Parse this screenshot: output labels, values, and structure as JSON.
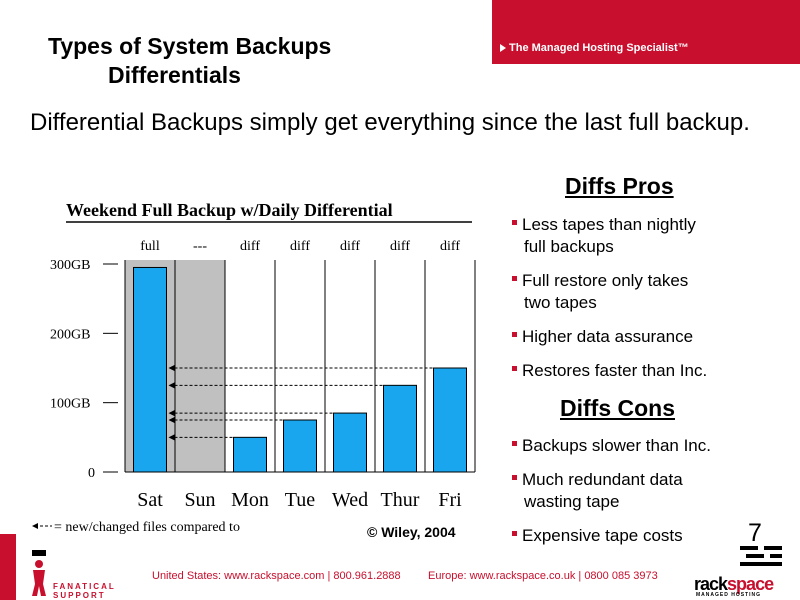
{
  "header": {
    "tagline": "The Managed Hosting Specialist™",
    "title_line1": "Types of System Backups",
    "title_line2": "Differentials"
  },
  "intro": "Differential Backups simply get everything since the last full backup.",
  "chart_data": {
    "type": "bar",
    "title": "Weekend Full Backup w/Daily Differential",
    "categories": [
      "Sat",
      "Sun",
      "Mon",
      "Tue",
      "Wed",
      "Thur",
      "Fri"
    ],
    "column_labels": [
      "full",
      "---",
      "diff",
      "diff",
      "diff",
      "diff",
      "diff"
    ],
    "values": [
      295,
      0,
      50,
      75,
      85,
      125,
      150
    ],
    "yticks": [
      {
        "value": 300,
        "label": "300GB"
      },
      {
        "value": 200,
        "label": "200GB"
      },
      {
        "value": 100,
        "label": "100GB"
      },
      {
        "value": 0,
        "label": "0"
      }
    ],
    "ylim": [
      0,
      320
    ],
    "shaded_categories": [
      "Sat",
      "Sun"
    ],
    "arrow_values": [
      150,
      125,
      85,
      75,
      50
    ],
    "legend": "= new/changed files compared to",
    "bar_color": "#1aa6ef",
    "shade_color": "#c0c0c0"
  },
  "copyright": "© Wiley, 2004",
  "pros": {
    "heading": "Diffs Pros",
    "items": [
      {
        "line1": "Less tapes than nightly",
        "line2": "full backups"
      },
      {
        "line1": "Full restore only takes",
        "line2": "two tapes"
      },
      {
        "line1": "Higher data assurance",
        "line2": ""
      },
      {
        "line1": "Restores faster than Inc.",
        "line2": ""
      }
    ]
  },
  "cons": {
    "heading": "Diffs Cons",
    "items": [
      {
        "line1": "Backups slower than Inc.",
        "line2": ""
      },
      {
        "line1": "Much redundant data",
        "line2": "wasting tape"
      },
      {
        "line1": "Expensive tape costs",
        "line2": ""
      }
    ]
  },
  "page_number": "7",
  "footer": {
    "fanatical": "FANATICAL",
    "support": "SUPPORT",
    "us_contact": "United States: www.rackspace.com | 800.961.2888",
    "eu_contact": "Europe: www.rackspace.co.uk | 0800 085 3973",
    "brand_main": "rack",
    "brand_accent": "space",
    "brand_sub": "MANAGED HOSTING"
  },
  "colors": {
    "brand_red": "#c8102e",
    "bar_blue": "#1aa6ef",
    "shade_gray": "#c0c0c0"
  }
}
